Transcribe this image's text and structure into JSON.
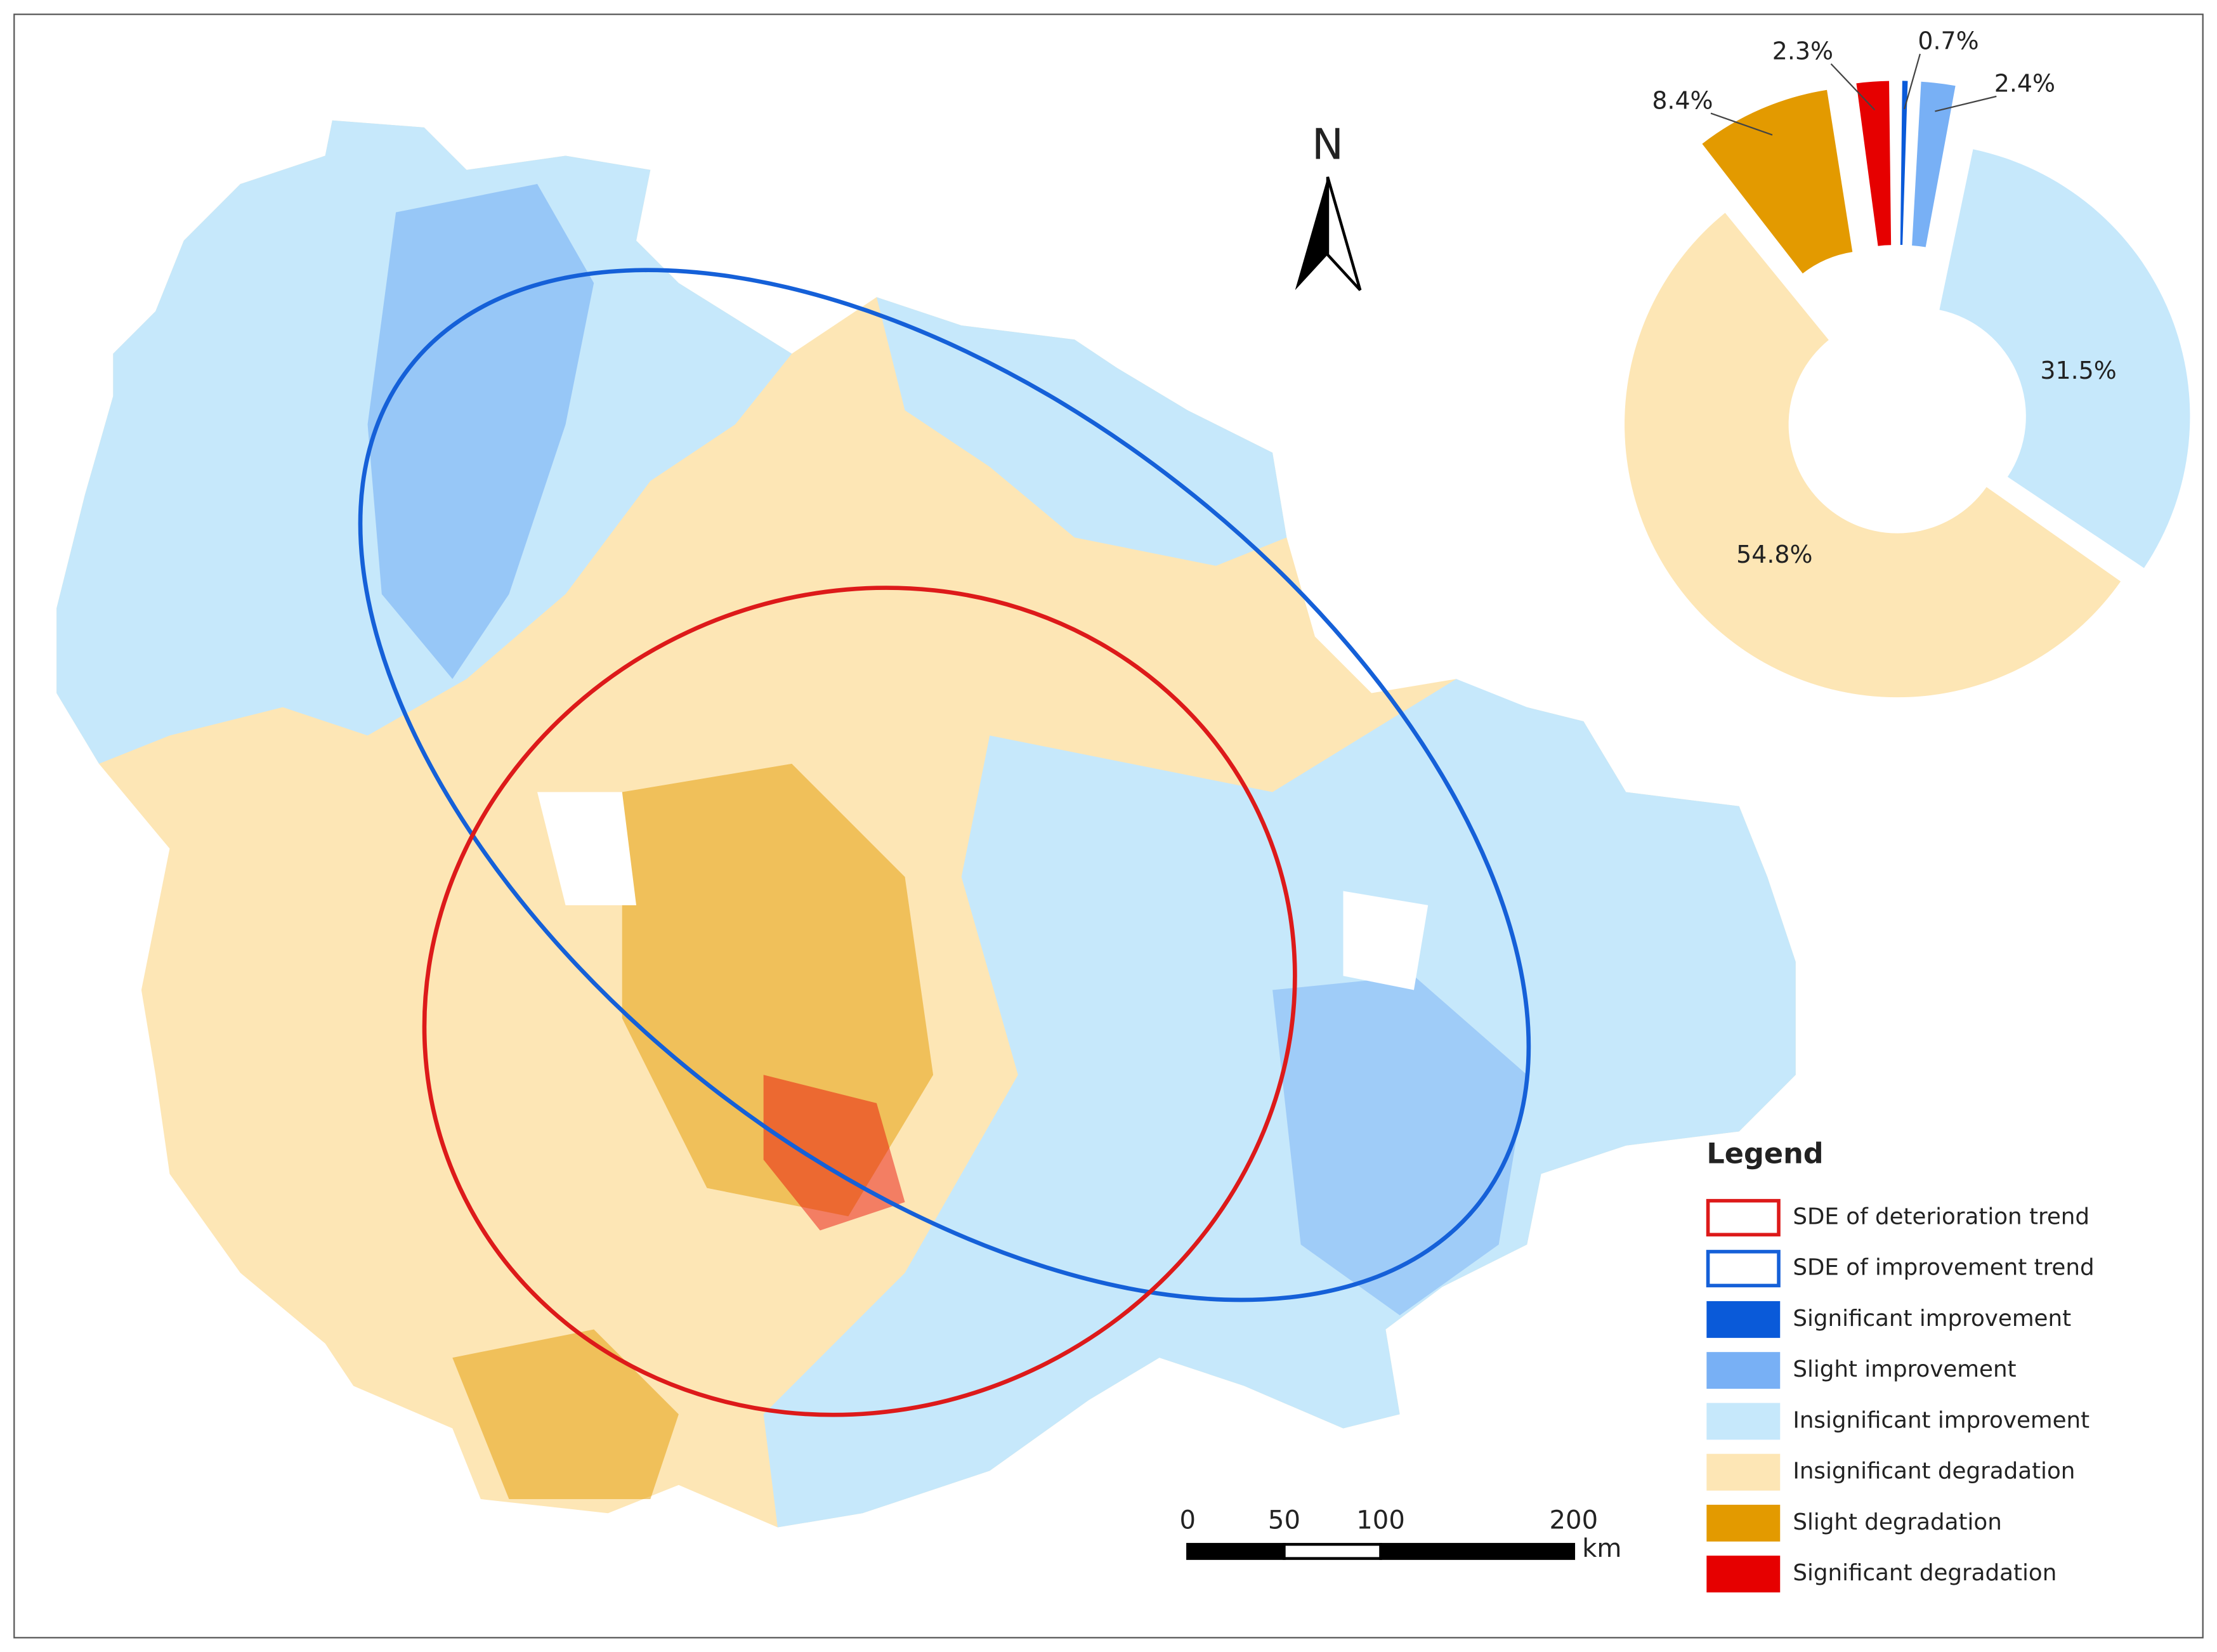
{
  "map": {
    "north": "N",
    "scale_labels": [
      0,
      50,
      100,
      200
    ],
    "scale_unit": "km",
    "legend_title": "Legend",
    "sde_items": [
      "SDE of deterioration trend",
      "SDE of improvement trend"
    ]
  },
  "chart_data": {
    "type": "pie",
    "categories": [
      "Significant improvement",
      "Slight improvement",
      "Insignificant improvement",
      "Insignificant degradation",
      "Slight degradation",
      "Significant degradation"
    ],
    "values": [
      0.7,
      2.4,
      31.5,
      54.8,
      8.4,
      2.3
    ],
    "value_labels": [
      "0.7%",
      "2.4%",
      "31.5%",
      "54.8%",
      "8.4%",
      "2.3%"
    ],
    "colors": [
      "#0a5ad9",
      "#78b0f5",
      "#c6e8fb",
      "#fde6b5",
      "#e39a00",
      "#e60000"
    ]
  }
}
